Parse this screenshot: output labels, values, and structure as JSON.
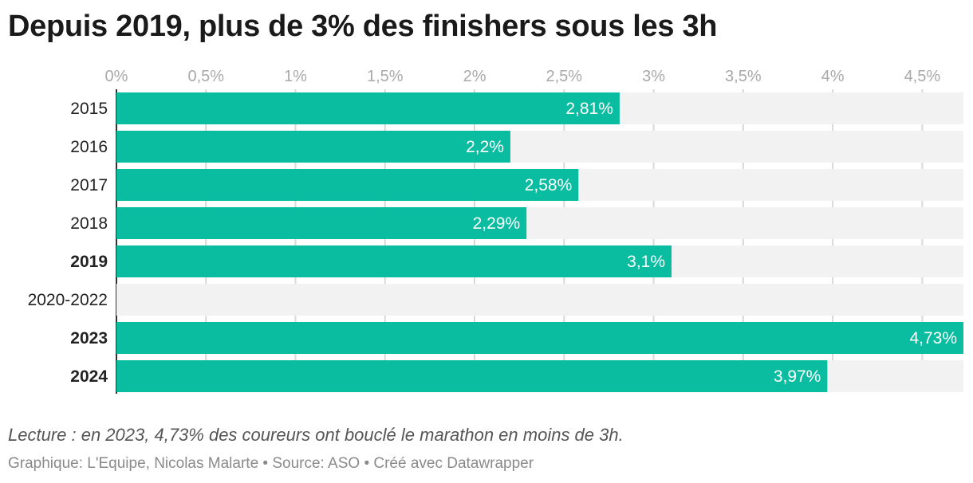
{
  "chart_data": {
    "type": "bar",
    "orientation": "horizontal",
    "title": "Depuis 2019, plus de 3% des finishers sous les 3h",
    "categories": [
      "2015",
      "2016",
      "2017",
      "2018",
      "2019",
      "2020-2022",
      "2023",
      "2024"
    ],
    "highlighted_categories": [
      "2019",
      "2023",
      "2024"
    ],
    "values": [
      2.81,
      2.2,
      2.58,
      2.29,
      3.1,
      null,
      4.73,
      3.97
    ],
    "value_labels": [
      "2,81%",
      "2,2%",
      "2,58%",
      "2,29%",
      "3,1%",
      "",
      "4,73%",
      "3,97%"
    ],
    "xlim": [
      0,
      4.73
    ],
    "x_ticks": [
      0,
      0.5,
      1,
      1.5,
      2,
      2.5,
      3,
      3.5,
      4,
      4.5
    ],
    "x_tick_labels": [
      "0%",
      "0,5%",
      "1%",
      "1,5%",
      "2%",
      "2,5%",
      "3%",
      "3,5%",
      "4%",
      "4,5%"
    ],
    "axis_position": "top",
    "grid": true,
    "colors": {
      "bar": "#0abda0",
      "track": "#f2f2f2",
      "grid": "#d9d9d9"
    }
  },
  "notes": {
    "reading": "Lecture : en 2023, 4,73% des coureurs ont bouclé le marathon en moins de 3h.",
    "credits": "Graphique: L'Equipe, Nicolas Malarte • Source: ASO • Créé avec Datawrapper"
  }
}
